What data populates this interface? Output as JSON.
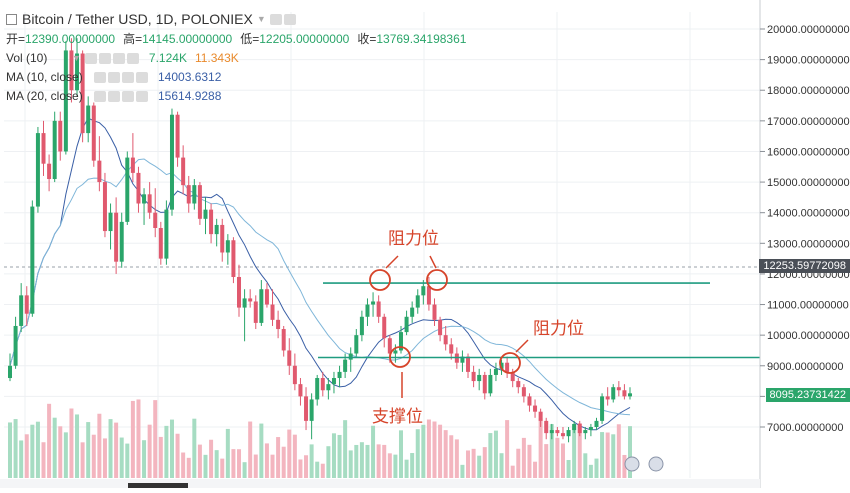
{
  "header": {
    "symbol": "Bitcoin / Tether USD, 1D, POLONIEX",
    "open_label": "开=",
    "open_value": "12390.00000000",
    "high_label": "高=",
    "high_value": "14145.00000000",
    "low_label": "低=",
    "low_value": "12205.00000000",
    "close_label": "收=",
    "close_value": "13769.34198361"
  },
  "indicators": [
    {
      "name": "Vol (10)",
      "values": [
        "7.124K",
        "11.343K"
      ]
    },
    {
      "name": "MA (10, close)",
      "values": [
        "14003.6312"
      ]
    },
    {
      "name": "MA (20, close)",
      "values": [
        "15614.9288"
      ]
    }
  ],
  "price_tags": {
    "crosshair": "12253.59772098",
    "last": "8095.23731422"
  },
  "annotations": {
    "resistance_1": "阻力位",
    "resistance_2": "阻力位",
    "support": "支撑位"
  },
  "colors": {
    "up": "#2aa56a",
    "down": "#e0596e",
    "vol_up": "#a6dcc2",
    "vol_down": "#f3b5bf",
    "ma10": "#3a5fa6",
    "ma20": "#7fb6d9",
    "hline": "#1f9c80",
    "annot": "#d6442a",
    "grid": "#eef0f3"
  },
  "chart_data": {
    "type": "candlestick",
    "ylim": [
      6500,
      20000
    ],
    "y_ticks": [
      "20000.00000000",
      "19000.00000000",
      "18000.00000000",
      "17000.00000000",
      "16000.00000000",
      "15000.00000000",
      "14000.00000000",
      "13000.00000000",
      "12000.00000000",
      "11000.00000000",
      "10000.00000000",
      "9000.00000000",
      "8000.00000000",
      "7000.00000000"
    ],
    "horizontal_levels": [
      11700,
      9270
    ],
    "candles": [
      {
        "o": 8600,
        "h": 9400,
        "l": 8500,
        "c": 9000
      },
      {
        "o": 9000,
        "h": 10600,
        "l": 8900,
        "c": 10300
      },
      {
        "o": 10300,
        "h": 11700,
        "l": 10100,
        "c": 11300
      },
      {
        "o": 11300,
        "h": 11600,
        "l": 10300,
        "c": 10700
      },
      {
        "o": 10700,
        "h": 14400,
        "l": 10600,
        "c": 14200
      },
      {
        "o": 14200,
        "h": 16800,
        "l": 14000,
        "c": 16600
      },
      {
        "o": 16600,
        "h": 17000,
        "l": 15200,
        "c": 15600
      },
      {
        "o": 15600,
        "h": 15900,
        "l": 14700,
        "c": 15100
      },
      {
        "o": 15100,
        "h": 17300,
        "l": 15000,
        "c": 17000
      },
      {
        "o": 17000,
        "h": 17300,
        "l": 15700,
        "c": 16000
      },
      {
        "o": 16000,
        "h": 19600,
        "l": 15900,
        "c": 19300
      },
      {
        "o": 19300,
        "h": 19700,
        "l": 17600,
        "c": 18000
      },
      {
        "o": 18000,
        "h": 19700,
        "l": 17800,
        "c": 19200
      },
      {
        "o": 19200,
        "h": 19300,
        "l": 16300,
        "c": 16600
      },
      {
        "o": 16600,
        "h": 17800,
        "l": 16300,
        "c": 17500
      },
      {
        "o": 17500,
        "h": 17600,
        "l": 15500,
        "c": 15700
      },
      {
        "o": 15700,
        "h": 16500,
        "l": 14700,
        "c": 15000
      },
      {
        "o": 15000,
        "h": 15300,
        "l": 13200,
        "c": 13400
      },
      {
        "o": 13400,
        "h": 14300,
        "l": 12800,
        "c": 14000
      },
      {
        "o": 14000,
        "h": 14500,
        "l": 12000,
        "c": 12400
      },
      {
        "o": 12400,
        "h": 14000,
        "l": 12200,
        "c": 13700
      },
      {
        "o": 13700,
        "h": 16000,
        "l": 13600,
        "c": 15800
      },
      {
        "o": 15800,
        "h": 16600,
        "l": 15000,
        "c": 15300
      },
      {
        "o": 15300,
        "h": 15500,
        "l": 14000,
        "c": 14300
      },
      {
        "o": 14300,
        "h": 14800,
        "l": 13600,
        "c": 14600
      },
      {
        "o": 14600,
        "h": 15000,
        "l": 13800,
        "c": 14000
      },
      {
        "o": 14000,
        "h": 14800,
        "l": 13200,
        "c": 13500
      },
      {
        "o": 13500,
        "h": 13700,
        "l": 12300,
        "c": 12500
      },
      {
        "o": 12500,
        "h": 14400,
        "l": 12300,
        "c": 14100
      },
      {
        "o": 14100,
        "h": 17400,
        "l": 13900,
        "c": 17200
      },
      {
        "o": 17200,
        "h": 17300,
        "l": 15500,
        "c": 15800
      },
      {
        "o": 15800,
        "h": 16200,
        "l": 14600,
        "c": 14900
      },
      {
        "o": 14900,
        "h": 15200,
        "l": 14000,
        "c": 14300
      },
      {
        "o": 14300,
        "h": 15100,
        "l": 14100,
        "c": 14900
      },
      {
        "o": 14900,
        "h": 15000,
        "l": 13600,
        "c": 13800
      },
      {
        "o": 13800,
        "h": 14500,
        "l": 13300,
        "c": 14100
      },
      {
        "o": 14100,
        "h": 14300,
        "l": 13000,
        "c": 13300
      },
      {
        "o": 13300,
        "h": 13800,
        "l": 12900,
        "c": 13600
      },
      {
        "o": 13600,
        "h": 13800,
        "l": 12400,
        "c": 12700
      },
      {
        "o": 12700,
        "h": 13300,
        "l": 12300,
        "c": 13100
      },
      {
        "o": 13100,
        "h": 13200,
        "l": 11700,
        "c": 11900
      },
      {
        "o": 11900,
        "h": 12300,
        "l": 10600,
        "c": 10900
      },
      {
        "o": 10900,
        "h": 11500,
        "l": 9800,
        "c": 11200
      },
      {
        "o": 11200,
        "h": 11500,
        "l": 10900,
        "c": 11100
      },
      {
        "o": 11100,
        "h": 11300,
        "l": 10200,
        "c": 10400
      },
      {
        "o": 10400,
        "h": 11800,
        "l": 10300,
        "c": 11500
      },
      {
        "o": 11500,
        "h": 11700,
        "l": 10900,
        "c": 11000
      },
      {
        "o": 11000,
        "h": 11500,
        "l": 10300,
        "c": 10500
      },
      {
        "o": 10500,
        "h": 10800,
        "l": 9900,
        "c": 10200
      },
      {
        "o": 10200,
        "h": 10300,
        "l": 9300,
        "c": 9500
      },
      {
        "o": 9500,
        "h": 9900,
        "l": 8700,
        "c": 9000
      },
      {
        "o": 9000,
        "h": 9400,
        "l": 8200,
        "c": 8400
      },
      {
        "o": 8400,
        "h": 8600,
        "l": 7700,
        "c": 8000
      },
      {
        "o": 8000,
        "h": 8300,
        "l": 6900,
        "c": 7200
      },
      {
        "o": 7200,
        "h": 8100,
        "l": 6600,
        "c": 7900
      },
      {
        "o": 7900,
        "h": 8700,
        "l": 7700,
        "c": 8600
      },
      {
        "o": 8600,
        "h": 8800,
        "l": 8000,
        "c": 8200
      },
      {
        "o": 8200,
        "h": 8600,
        "l": 7900,
        "c": 8400
      },
      {
        "o": 8400,
        "h": 8800,
        "l": 8100,
        "c": 8600
      },
      {
        "o": 8600,
        "h": 9000,
        "l": 8300,
        "c": 8800
      },
      {
        "o": 8800,
        "h": 9400,
        "l": 8600,
        "c": 9200
      },
      {
        "o": 9200,
        "h": 9600,
        "l": 8800,
        "c": 9400
      },
      {
        "o": 9400,
        "h": 10200,
        "l": 9300,
        "c": 10000
      },
      {
        "o": 10000,
        "h": 10800,
        "l": 9800,
        "c": 10600
      },
      {
        "o": 10600,
        "h": 11200,
        "l": 10300,
        "c": 11000
      },
      {
        "o": 11000,
        "h": 11400,
        "l": 10600,
        "c": 11100
      },
      {
        "o": 11100,
        "h": 11300,
        "l": 10400,
        "c": 10600
      },
      {
        "o": 10600,
        "h": 10700,
        "l": 9600,
        "c": 9900
      },
      {
        "o": 9900,
        "h": 10000,
        "l": 9100,
        "c": 9400
      },
      {
        "o": 9400,
        "h": 9700,
        "l": 9100,
        "c": 9500
      },
      {
        "o": 9500,
        "h": 10300,
        "l": 9400,
        "c": 10100
      },
      {
        "o": 10100,
        "h": 10800,
        "l": 10000,
        "c": 10600
      },
      {
        "o": 10600,
        "h": 11100,
        "l": 10400,
        "c": 10900
      },
      {
        "o": 10900,
        "h": 11500,
        "l": 10700,
        "c": 11300
      },
      {
        "o": 11300,
        "h": 11800,
        "l": 11000,
        "c": 11600
      },
      {
        "o": 11600,
        "h": 11900,
        "l": 10800,
        "c": 11000
      },
      {
        "o": 11000,
        "h": 11200,
        "l": 10300,
        "c": 10500
      },
      {
        "o": 10500,
        "h": 10600,
        "l": 9800,
        "c": 10000
      },
      {
        "o": 10000,
        "h": 10300,
        "l": 9500,
        "c": 9700
      },
      {
        "o": 9700,
        "h": 9900,
        "l": 9200,
        "c": 9400
      },
      {
        "o": 9400,
        "h": 9600,
        "l": 8900,
        "c": 9100
      },
      {
        "o": 9100,
        "h": 9500,
        "l": 8800,
        "c": 9300
      },
      {
        "o": 9300,
        "h": 9400,
        "l": 8600,
        "c": 8800
      },
      {
        "o": 8800,
        "h": 9000,
        "l": 8300,
        "c": 8500
      },
      {
        "o": 8500,
        "h": 8900,
        "l": 8200,
        "c": 8700
      },
      {
        "o": 8700,
        "h": 8800,
        "l": 7900,
        "c": 8100
      },
      {
        "o": 8100,
        "h": 8900,
        "l": 8000,
        "c": 8700
      },
      {
        "o": 8700,
        "h": 9100,
        "l": 8500,
        "c": 8900
      },
      {
        "o": 8900,
        "h": 9200,
        "l": 8700,
        "c": 9100
      },
      {
        "o": 9100,
        "h": 9300,
        "l": 8600,
        "c": 8800
      },
      {
        "o": 8800,
        "h": 8900,
        "l": 8300,
        "c": 8500
      },
      {
        "o": 8500,
        "h": 8600,
        "l": 8100,
        "c": 8300
      },
      {
        "o": 8300,
        "h": 8400,
        "l": 7800,
        "c": 8000
      },
      {
        "o": 8000,
        "h": 8100,
        "l": 7500,
        "c": 7700
      },
      {
        "o": 7700,
        "h": 7900,
        "l": 7300,
        "c": 7500
      },
      {
        "o": 7500,
        "h": 7600,
        "l": 7000,
        "c": 7200
      },
      {
        "o": 7200,
        "h": 7300,
        "l": 6600,
        "c": 6800
      },
      {
        "o": 6800,
        "h": 7100,
        "l": 6600,
        "c": 6900
      },
      {
        "o": 6900,
        "h": 7000,
        "l": 6700,
        "c": 6800
      },
      {
        "o": 6800,
        "h": 7000,
        "l": 6600,
        "c": 6700
      },
      {
        "o": 6700,
        "h": 7000,
        "l": 6500,
        "c": 6900
      },
      {
        "o": 6900,
        "h": 7200,
        "l": 6800,
        "c": 7100
      },
      {
        "o": 7100,
        "h": 7200,
        "l": 6700,
        "c": 6800
      },
      {
        "o": 6800,
        "h": 7000,
        "l": 6600,
        "c": 6900
      },
      {
        "o": 6900,
        "h": 7100,
        "l": 6700,
        "c": 7000
      },
      {
        "o": 7000,
        "h": 7300,
        "l": 6900,
        "c": 7200
      },
      {
        "o": 7200,
        "h": 8100,
        "l": 7100,
        "c": 8000
      },
      {
        "o": 8000,
        "h": 8300,
        "l": 7700,
        "c": 7900
      },
      {
        "o": 7900,
        "h": 8400,
        "l": 7800,
        "c": 8300
      },
      {
        "o": 8300,
        "h": 8500,
        "l": 8000,
        "c": 8200
      },
      {
        "o": 8200,
        "h": 8400,
        "l": 7900,
        "c": 8000
      },
      {
        "o": 8000,
        "h": 8300,
        "l": 7900,
        "c": 8100
      }
    ]
  }
}
